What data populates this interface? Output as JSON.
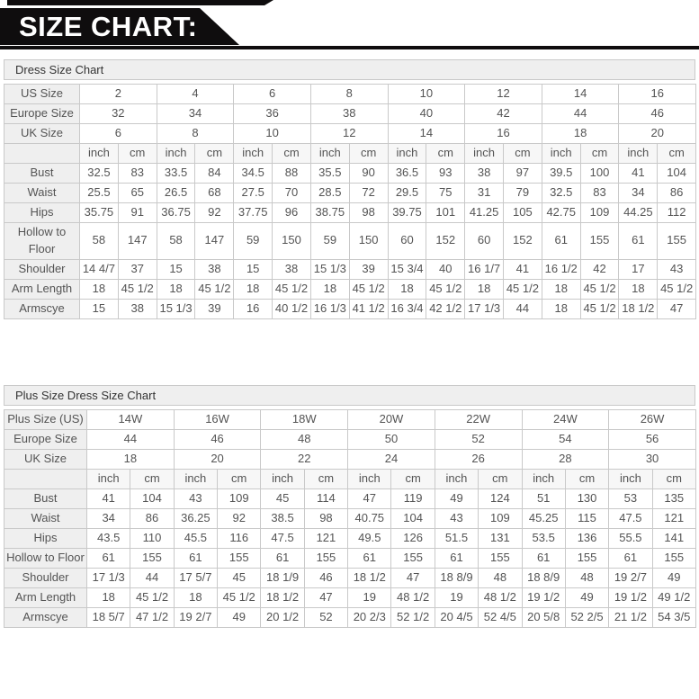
{
  "banner": {
    "title": "SIZE CHART:"
  },
  "table1": {
    "title": "Dress Size Chart",
    "units": [
      "inch",
      "cm"
    ],
    "size_rows": [
      {
        "label": "US Size",
        "values": [
          "2",
          "4",
          "6",
          "8",
          "10",
          "12",
          "14",
          "16"
        ]
      },
      {
        "label": "Europe Size",
        "values": [
          "32",
          "34",
          "36",
          "38",
          "40",
          "42",
          "44",
          "46"
        ]
      },
      {
        "label": "UK Size",
        "values": [
          "6",
          "8",
          "10",
          "12",
          "14",
          "16",
          "18",
          "20"
        ]
      }
    ],
    "measure_rows": [
      {
        "label": "Bust",
        "values": [
          "32.5",
          "83",
          "33.5",
          "84",
          "34.5",
          "88",
          "35.5",
          "90",
          "36.5",
          "93",
          "38",
          "97",
          "39.5",
          "100",
          "41",
          "104"
        ]
      },
      {
        "label": "Waist",
        "values": [
          "25.5",
          "65",
          "26.5",
          "68",
          "27.5",
          "70",
          "28.5",
          "72",
          "29.5",
          "75",
          "31",
          "79",
          "32.5",
          "83",
          "34",
          "86"
        ]
      },
      {
        "label": "Hips",
        "values": [
          "35.75",
          "91",
          "36.75",
          "92",
          "37.75",
          "96",
          "38.75",
          "98",
          "39.75",
          "101",
          "41.25",
          "105",
          "42.75",
          "109",
          "44.25",
          "112"
        ]
      },
      {
        "label": "Hollow to Floor",
        "values": [
          "58",
          "147",
          "58",
          "147",
          "59",
          "150",
          "59",
          "150",
          "60",
          "152",
          "60",
          "152",
          "61",
          "155",
          "61",
          "155"
        ]
      },
      {
        "label": "Shoulder",
        "values": [
          "14 4/7",
          "37",
          "15",
          "38",
          "15",
          "38",
          "15 1/3",
          "39",
          "15 3/4",
          "40",
          "16 1/7",
          "41",
          "16 1/2",
          "42",
          "17",
          "43"
        ]
      },
      {
        "label": "Arm Length",
        "values": [
          "18",
          "45 1/2",
          "18",
          "45 1/2",
          "18",
          "45 1/2",
          "18",
          "45 1/2",
          "18",
          "45 1/2",
          "18",
          "45 1/2",
          "18",
          "45 1/2",
          "18",
          "45 1/2"
        ]
      },
      {
        "label": "Armscye",
        "values": [
          "15",
          "38",
          "15 1/3",
          "39",
          "16",
          "40 1/2",
          "16 1/3",
          "41 1/2",
          "16 3/4",
          "42 1/2",
          "17 1/3",
          "44",
          "18",
          "45 1/2",
          "18 1/2",
          "47"
        ]
      }
    ]
  },
  "table2": {
    "title": "Plus Size Dress Size Chart",
    "units": [
      "inch",
      "cm"
    ],
    "size_rows": [
      {
        "label": "Plus Size (US)",
        "values": [
          "14W",
          "16W",
          "18W",
          "20W",
          "22W",
          "24W",
          "26W"
        ]
      },
      {
        "label": "Europe Size",
        "values": [
          "44",
          "46",
          "48",
          "50",
          "52",
          "54",
          "56"
        ]
      },
      {
        "label": "UK Size",
        "values": [
          "18",
          "20",
          "22",
          "24",
          "26",
          "28",
          "30"
        ]
      }
    ],
    "measure_rows": [
      {
        "label": "Bust",
        "values": [
          "41",
          "104",
          "43",
          "109",
          "45",
          "114",
          "47",
          "119",
          "49",
          "124",
          "51",
          "130",
          "53",
          "135"
        ]
      },
      {
        "label": "Waist",
        "values": [
          "34",
          "86",
          "36.25",
          "92",
          "38.5",
          "98",
          "40.75",
          "104",
          "43",
          "109",
          "45.25",
          "115",
          "47.5",
          "121"
        ]
      },
      {
        "label": "Hips",
        "values": [
          "43.5",
          "110",
          "45.5",
          "116",
          "47.5",
          "121",
          "49.5",
          "126",
          "51.5",
          "131",
          "53.5",
          "136",
          "55.5",
          "141"
        ]
      },
      {
        "label": "Hollow to Floor",
        "values": [
          "61",
          "155",
          "61",
          "155",
          "61",
          "155",
          "61",
          "155",
          "61",
          "155",
          "61",
          "155",
          "61",
          "155"
        ]
      },
      {
        "label": "Shoulder",
        "values": [
          "17 1/3",
          "44",
          "17 5/7",
          "45",
          "18 1/9",
          "46",
          "18 1/2",
          "47",
          "18 8/9",
          "48",
          "18 8/9",
          "48",
          "19 2/7",
          "49"
        ]
      },
      {
        "label": "Arm Length",
        "values": [
          "18",
          "45 1/2",
          "18",
          "45 1/2",
          "18 1/2",
          "47",
          "19",
          "48 1/2",
          "19",
          "48 1/2",
          "19 1/2",
          "49",
          "19 1/2",
          "49 1/2"
        ]
      },
      {
        "label": "Armscye",
        "values": [
          "18 5/7",
          "47 1/2",
          "19 2/7",
          "49",
          "20 1/2",
          "52",
          "20 2/3",
          "52 1/2",
          "20 4/5",
          "52 4/5",
          "20 5/8",
          "52 2/5",
          "21 1/2",
          "54 3/5"
        ]
      }
    ]
  }
}
